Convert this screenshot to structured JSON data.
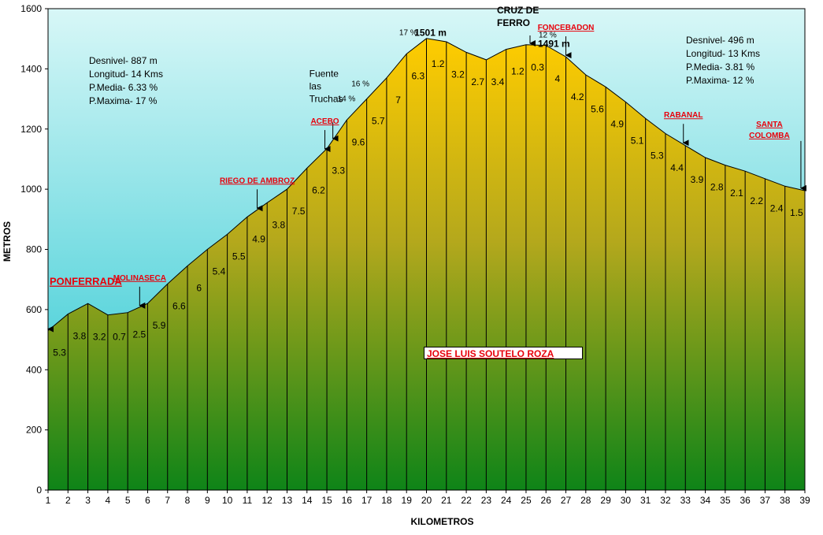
{
  "chart_data": {
    "type": "area",
    "xlabel": "KILOMETROS",
    "ylabel": "METROS",
    "xlim": [
      1,
      39
    ],
    "ylim": [
      0,
      1600
    ],
    "x_ticks": [
      1,
      2,
      3,
      4,
      5,
      6,
      7,
      8,
      9,
      10,
      11,
      12,
      13,
      14,
      15,
      16,
      17,
      18,
      19,
      20,
      21,
      22,
      23,
      24,
      25,
      26,
      27,
      28,
      29,
      30,
      31,
      32,
      33,
      34,
      35,
      36,
      37,
      38,
      39
    ],
    "y_ticks": [
      0,
      200,
      400,
      600,
      800,
      1000,
      1200,
      1400,
      1600
    ],
    "x": [
      1,
      2,
      3,
      4,
      5,
      6,
      7,
      8,
      9,
      10,
      11,
      12,
      13,
      14,
      15,
      16,
      17,
      18,
      19,
      20,
      21,
      22,
      23,
      24,
      25,
      26,
      27,
      28,
      29,
      30,
      31,
      32,
      33,
      34,
      35,
      36,
      37,
      38,
      39
    ],
    "elevation": [
      530,
      585,
      620,
      582,
      590,
      620,
      685,
      745,
      800,
      850,
      908,
      955,
      1000,
      1070,
      1135,
      1230,
      1300,
      1370,
      1450,
      1501,
      1490,
      1455,
      1430,
      1465,
      1480,
      1478,
      1440,
      1380,
      1340,
      1290,
      1235,
      1185,
      1145,
      1105,
      1080,
      1060,
      1035,
      1010,
      995
    ],
    "segment_grades": [
      "5.3",
      "3.8",
      "3.2",
      "0.7",
      "2.5",
      "5.9",
      "6.6",
      "6",
      "5.4",
      "5.5",
      "4.9",
      "3.8",
      "7.5",
      "6.2",
      "3.3",
      "9.6",
      "5.7",
      "7",
      "6.3",
      "1.2",
      "3.2",
      "2.7",
      "3.4",
      "1.2",
      "0.3",
      "4",
      "4.2",
      "5.6",
      "4.9",
      "5.1",
      "5.3",
      "4.4",
      "3.9",
      "2.8",
      "2.1",
      "2.2",
      "2.4",
      "1.5"
    ],
    "places": [
      {
        "label": "PONFERRADA",
        "km": 1
      },
      {
        "label": "MOLINASECA",
        "km": 5.6
      },
      {
        "label": "RIEGO DE AMBROZ",
        "km": 11.5
      },
      {
        "label": "ACEBO",
        "km": 14.9
      },
      {
        "label": "FONCEBADON",
        "km": 27
      },
      {
        "label": "RABANAL",
        "km": 32.9
      },
      {
        "label": "SANTA COLOMBA",
        "km": 38.8
      }
    ],
    "fuente_las_truchas": {
      "lines": [
        "Fuente",
        "las",
        "Truchas"
      ],
      "km": 15.3
    },
    "peak_labels": [
      {
        "label": "1501 m",
        "km": 20.2
      },
      {
        "label": "1491 m",
        "km": 26.4
      }
    ],
    "cruz_de_ferro": {
      "lines": [
        "CRUZ DE",
        "FERRO"
      ],
      "km": 25.2
    },
    "slope_labels": [
      {
        "label": "17 %",
        "km": 19.4
      },
      {
        "label": "16 %",
        "km": 17
      },
      {
        "label": "14 %",
        "km": 16.3
      },
      {
        "label": "12 %",
        "km": 26.4
      }
    ],
    "stats_left": [
      "Desnivel- 887 m",
      "Longitud- 14 Kms",
      "P.Media- 6.33 %",
      "P.Maxima- 17 %"
    ],
    "stats_right": [
      "Desnivel- 496 m",
      "Longitud- 13 Kms",
      "P.Media- 3.81 %",
      "P.Maxima- 12 %"
    ],
    "author": "JOSE LUIS SOUTELO ROZA",
    "colors": {
      "sky_top": "#d8f7f7",
      "sky_bottom": "#1ec4cf",
      "fill_top": "#ffcc00",
      "fill_mid": "#b4a81c",
      "fill_bottom": "#0e8418",
      "place": "#e8000b"
    }
  }
}
